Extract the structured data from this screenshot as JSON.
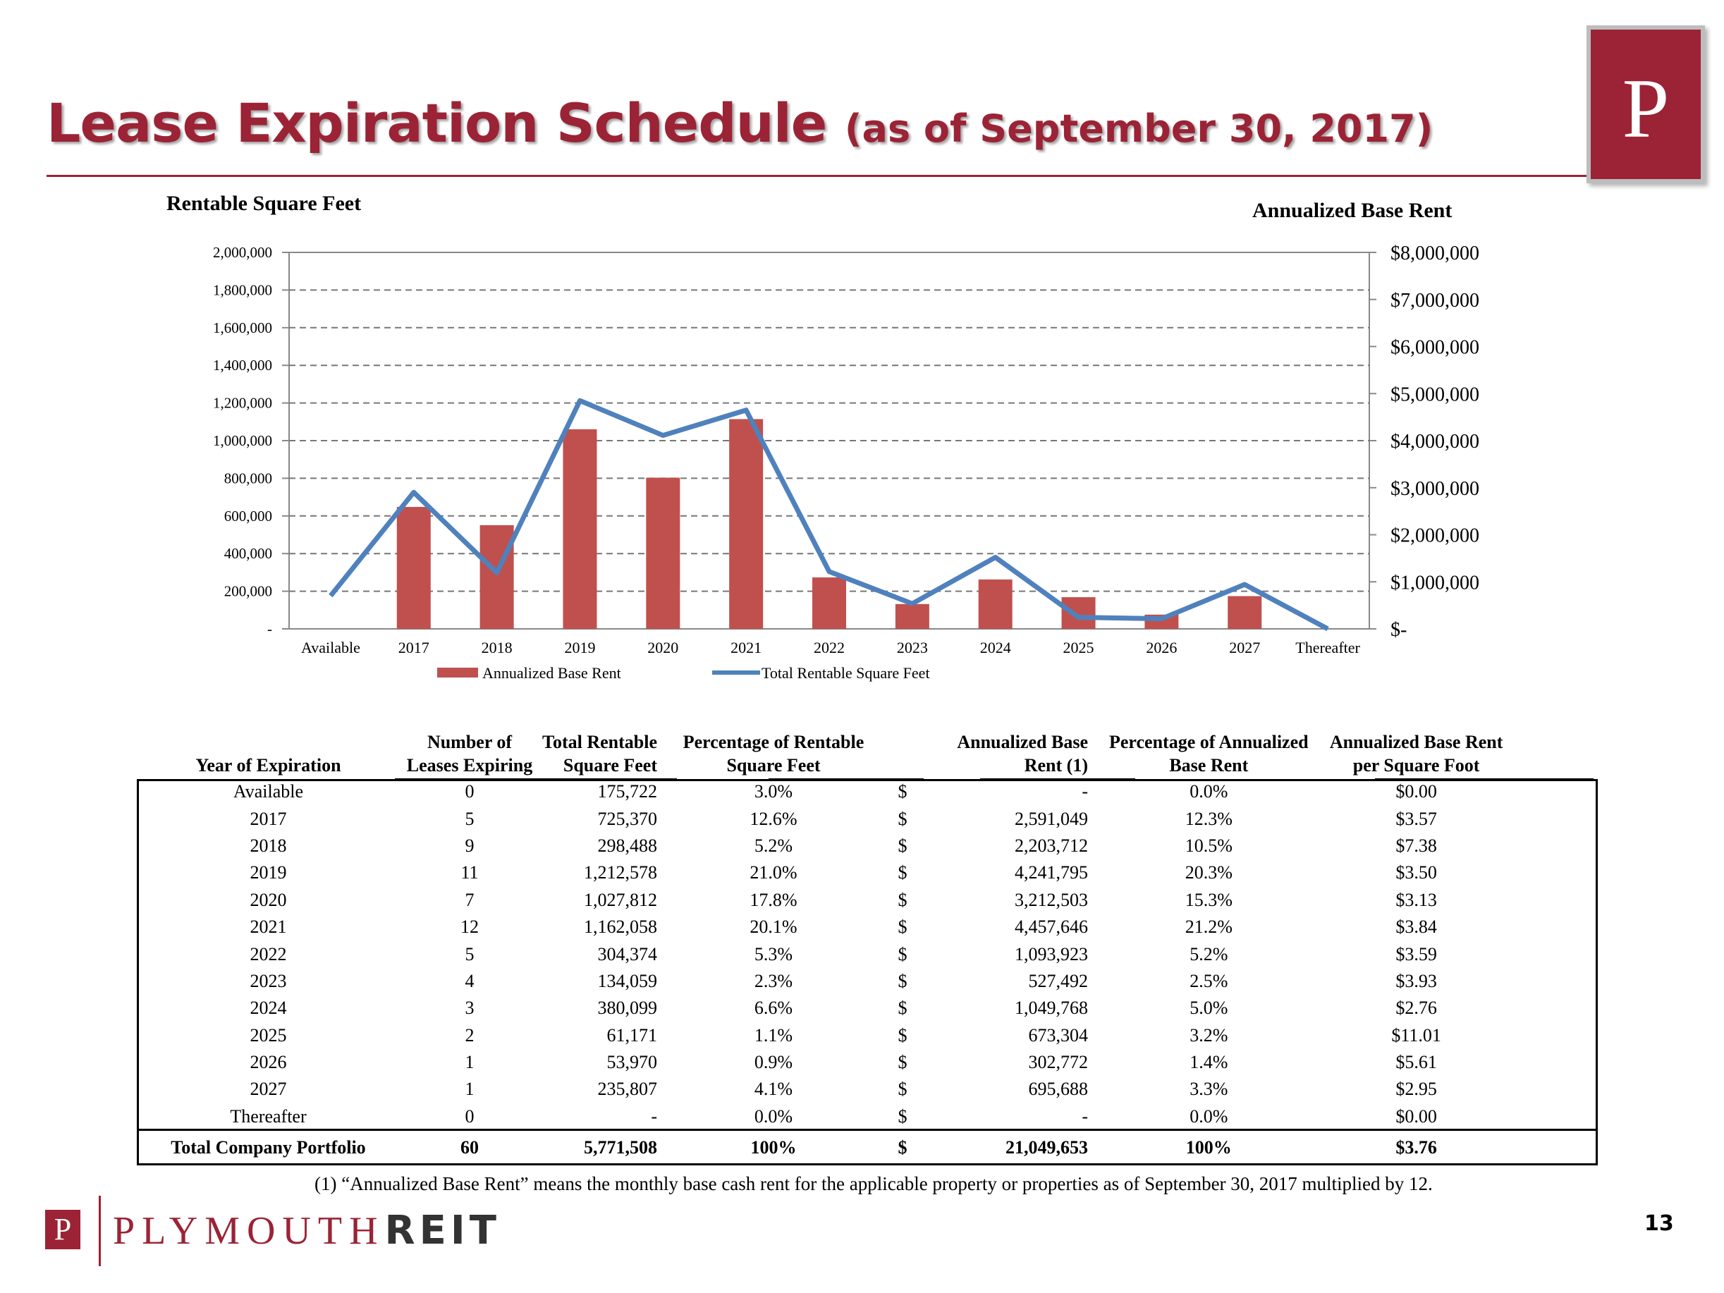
{
  "title": {
    "main": "Lease Expiration Schedule",
    "sub": "(as of September 30, 2017)"
  },
  "logo_letter": "P",
  "chart_data": {
    "type": "bar+line",
    "left_axis_title": "Rentable Square Feet",
    "right_axis_title": "Annualized Base Rent",
    "categories": [
      "Available",
      "2017",
      "2018",
      "2019",
      "2020",
      "2021",
      "2022",
      "2023",
      "2024",
      "2025",
      "2026",
      "2027",
      "Thereafter"
    ],
    "left_ticks": [
      "-",
      "200,000",
      "400,000",
      "600,000",
      "800,000",
      "1,000,000",
      "1,200,000",
      "1,400,000",
      "1,600,000",
      "1,800,000",
      "2,000,000"
    ],
    "right_ticks": [
      "$-",
      "$1,000,000",
      "$2,000,000",
      "$3,000,000",
      "$4,000,000",
      "$5,000,000",
      "$6,000,000",
      "$7,000,000",
      "$8,000,000"
    ],
    "left_ylim": [
      0,
      2000000
    ],
    "right_ylim": [
      0,
      8000000
    ],
    "grid": "dashed",
    "series": [
      {
        "name": "Annualized Base Rent",
        "type": "bar",
        "axis": "right",
        "color": "#c0504d",
        "values": [
          0,
          2591049,
          2203712,
          4241795,
          3212503,
          4457646,
          1093923,
          527492,
          1049768,
          673304,
          302772,
          695688,
          0
        ]
      },
      {
        "name": "Total Rentable Square Feet",
        "type": "line",
        "axis": "left",
        "color": "#4f81bd",
        "values": [
          175722,
          725370,
          298488,
          1212578,
          1027812,
          1162058,
          304374,
          134059,
          380099,
          61171,
          53970,
          235807,
          0
        ]
      }
    ],
    "legend_position": "bottom"
  },
  "table": {
    "headers": [
      "Year of Expiration",
      "Number of Leases Expiring",
      "Total Rentable Square Feet",
      "Percentage of Rentable Square Feet",
      "",
      "Annualized Base Rent (1)",
      "Percentage of Annualized Base Rent",
      "Annualized Base Rent per Square Foot"
    ],
    "header_lines": [
      [
        "",
        "Year of Expiration"
      ],
      [
        "Number of",
        "Leases Expiring"
      ],
      [
        "Total Rentable",
        "Square Feet"
      ],
      [
        "Percentage of Rentable",
        "Square Feet"
      ],
      [
        "",
        ""
      ],
      [
        "Annualized Base",
        "Rent (1)"
      ],
      [
        "Percentage of Annualized",
        "Base Rent"
      ],
      [
        "Annualized Base Rent",
        "per Square Foot"
      ]
    ],
    "rows": [
      [
        "Available",
        "0",
        "175,722",
        "3.0%",
        "$",
        "-",
        "0.0%",
        "$0.00"
      ],
      [
        "2017",
        "5",
        "725,370",
        "12.6%",
        "$",
        "2,591,049",
        "12.3%",
        "$3.57"
      ],
      [
        "2018",
        "9",
        "298,488",
        "5.2%",
        "$",
        "2,203,712",
        "10.5%",
        "$7.38"
      ],
      [
        "2019",
        "11",
        "1,212,578",
        "21.0%",
        "$",
        "4,241,795",
        "20.3%",
        "$3.50"
      ],
      [
        "2020",
        "7",
        "1,027,812",
        "17.8%",
        "$",
        "3,212,503",
        "15.3%",
        "$3.13"
      ],
      [
        "2021",
        "12",
        "1,162,058",
        "20.1%",
        "$",
        "4,457,646",
        "21.2%",
        "$3.84"
      ],
      [
        "2022",
        "5",
        "304,374",
        "5.3%",
        "$",
        "1,093,923",
        "5.2%",
        "$3.59"
      ],
      [
        "2023",
        "4",
        "134,059",
        "2.3%",
        "$",
        "527,492",
        "2.5%",
        "$3.93"
      ],
      [
        "2024",
        "3",
        "380,099",
        "6.6%",
        "$",
        "1,049,768",
        "5.0%",
        "$2.76"
      ],
      [
        "2025",
        "2",
        "61,171",
        "1.1%",
        "$",
        "673,304",
        "3.2%",
        "$11.01"
      ],
      [
        "2026",
        "1",
        "53,970",
        "0.9%",
        "$",
        "302,772",
        "1.4%",
        "$5.61"
      ],
      [
        "2027",
        "1",
        "235,807",
        "4.1%",
        "$",
        "695,688",
        "3.3%",
        "$2.95"
      ],
      [
        "Thereafter",
        "0",
        "-",
        "0.0%",
        "$",
        "-",
        "0.0%",
        "$0.00"
      ]
    ],
    "total": [
      "Total Company Portfolio",
      "60",
      "5,771,508",
      "100%",
      "$",
      "21,049,653",
      "100%",
      "$3.76"
    ]
  },
  "footnote": "(1)  “Annualized Base Rent” means the monthly base cash rent for the applicable property or properties as of September 30, 2017 multiplied by 12.",
  "brand": {
    "p": "P",
    "name": "PLYMOUTH",
    "reit": "REIT"
  },
  "page_number": "13"
}
